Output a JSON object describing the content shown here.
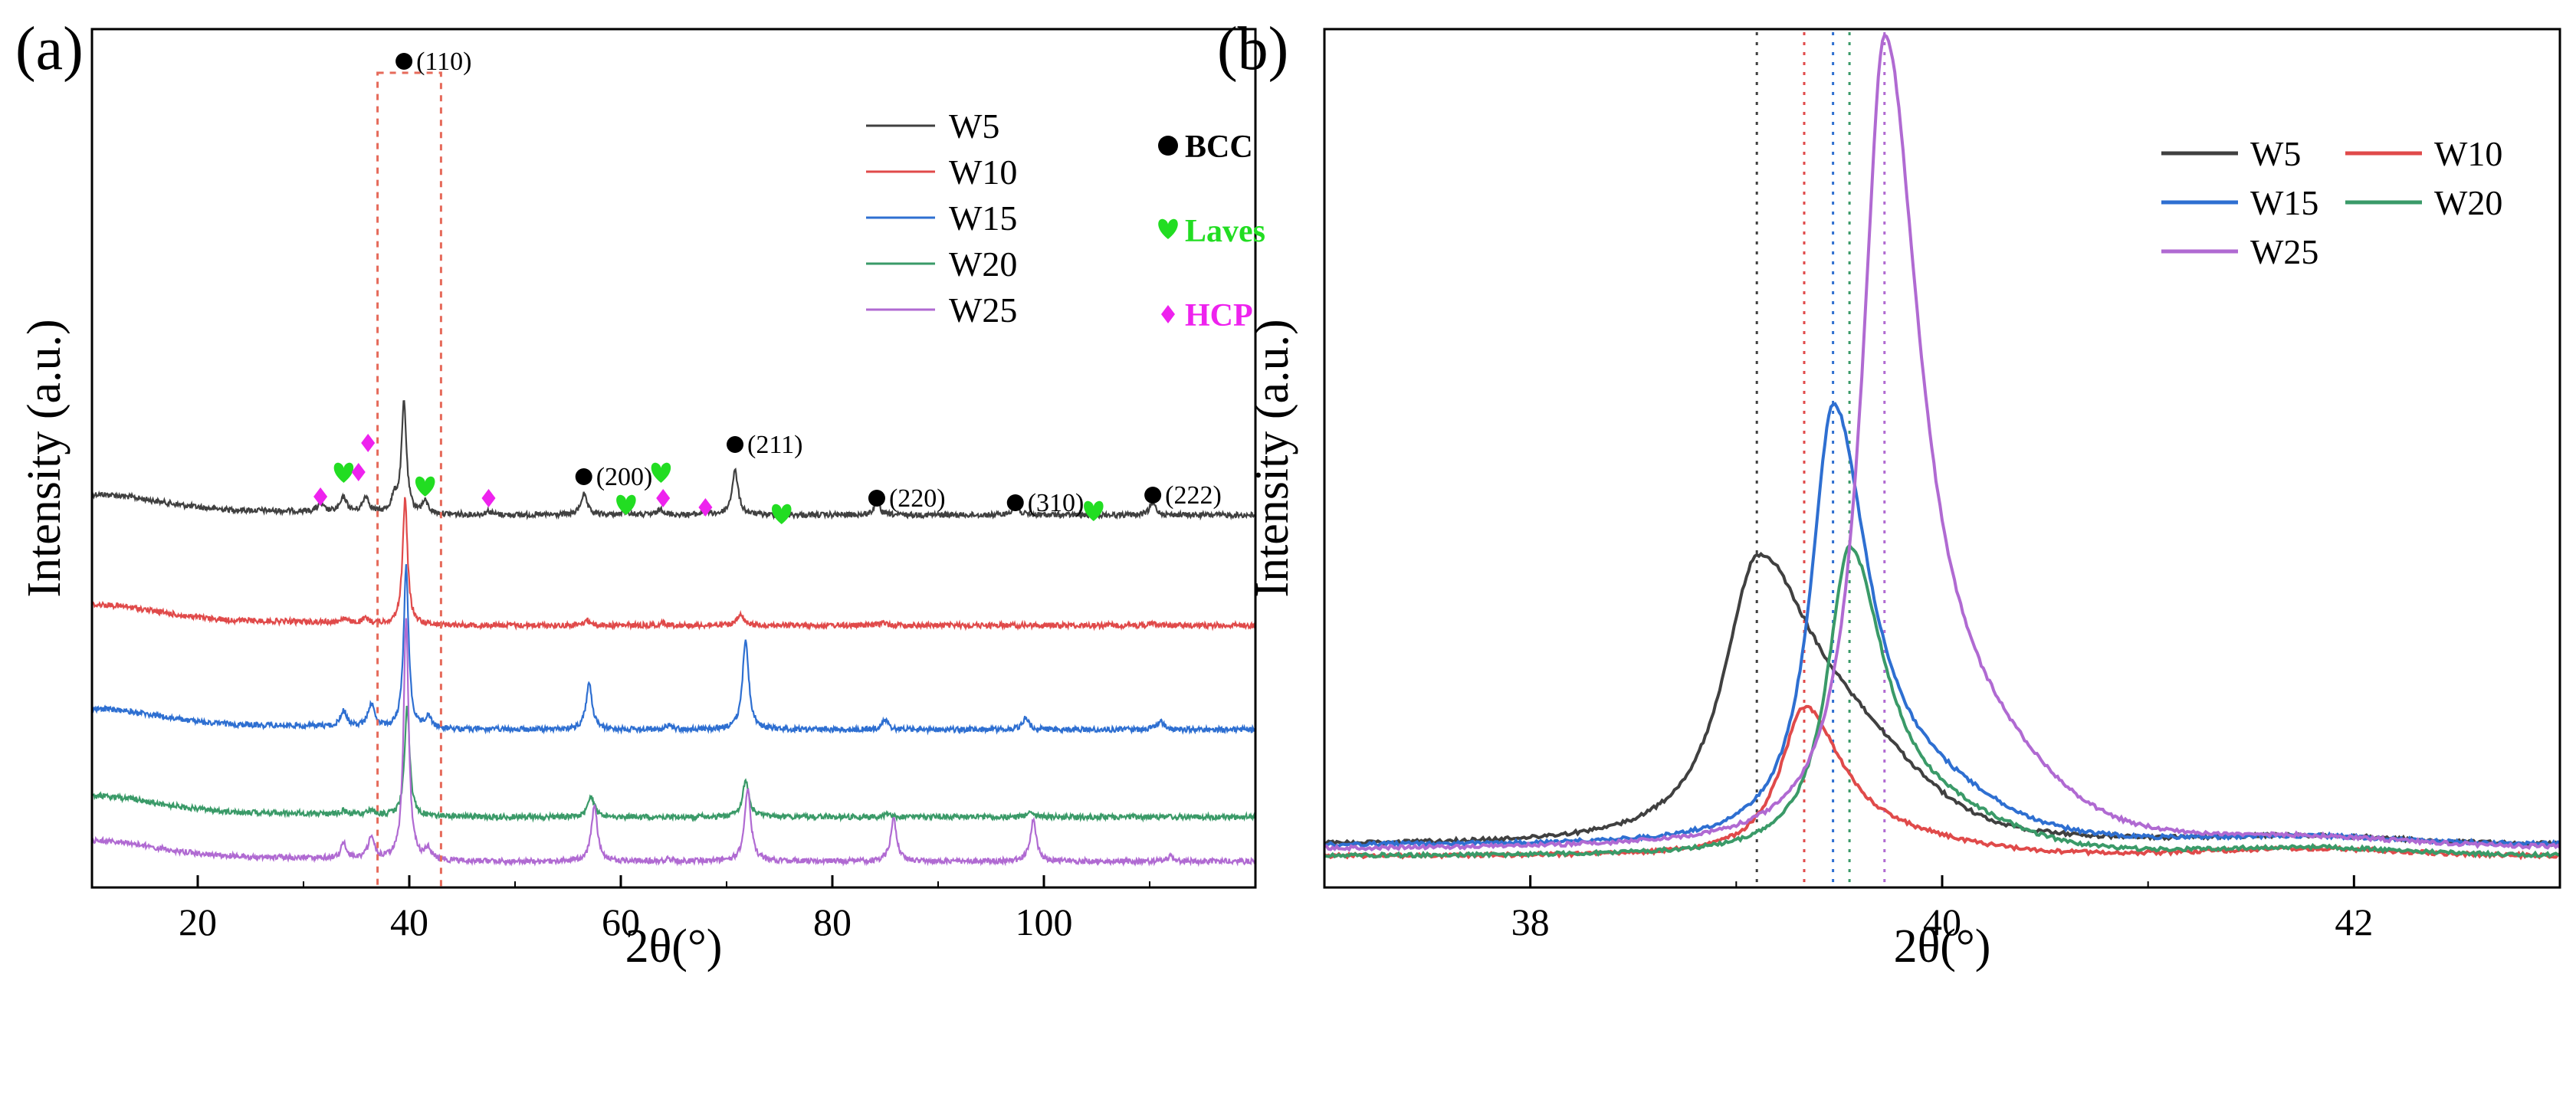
{
  "chart_data": [
    {
      "panel_label": "(a)",
      "type": "line",
      "xlabel": "2θ(°)",
      "ylabel": "Intensity (a.u.)",
      "xlim": [
        10,
        120
      ],
      "xticks": [
        20,
        40,
        60,
        80,
        100
      ],
      "y_tick_labels": "none",
      "series": [
        {
          "name": "W5",
          "color": "#404040",
          "offset": 4,
          "peaks": [
            [
              31.6,
              0.1
            ],
            [
              33.8,
              0.2
            ],
            [
              35.9,
              0.22
            ],
            [
              38.6,
              0.2
            ],
            [
              39.5,
              1.5
            ],
            [
              41.5,
              0.16
            ],
            [
              47.5,
              0.05
            ],
            [
              56.5,
              0.28
            ],
            [
              60.5,
              0.05
            ],
            [
              63.8,
              0.08
            ],
            [
              68.0,
              0.05
            ],
            [
              70.8,
              0.6
            ],
            [
              84.2,
              0.16
            ],
            [
              97.3,
              0.14
            ],
            [
              110.3,
              0.16
            ]
          ]
        },
        {
          "name": "W10",
          "color": "#e04a4a",
          "offset": 3,
          "peaks": [
            [
              33.8,
              0.06
            ],
            [
              35.9,
              0.06
            ],
            [
              39.6,
              1.7
            ],
            [
              56.8,
              0.07
            ],
            [
              64.0,
              0.03
            ],
            [
              71.3,
              0.14
            ],
            [
              84.8,
              0.04
            ],
            [
              110.5,
              0.03
            ]
          ]
        },
        {
          "name": "W15",
          "color": "#2e6fd1",
          "offset": 2,
          "peaks": [
            [
              33.8,
              0.22
            ],
            [
              36.4,
              0.32
            ],
            [
              39.7,
              2.2
            ],
            [
              41.8,
              0.16
            ],
            [
              57.0,
              0.62
            ],
            [
              64.5,
              0.06
            ],
            [
              71.8,
              1.22
            ],
            [
              85.0,
              0.13
            ],
            [
              98.3,
              0.16
            ],
            [
              111.0,
              0.13
            ]
          ]
        },
        {
          "name": "W20",
          "color": "#3a9a68",
          "offset": 1,
          "peaks": [
            [
              33.8,
              0.05
            ],
            [
              36.4,
              0.07
            ],
            [
              39.8,
              1.5
            ],
            [
              57.2,
              0.28
            ],
            [
              71.8,
              0.5
            ],
            [
              85.2,
              0.03
            ],
            [
              98.6,
              0.07
            ]
          ]
        },
        {
          "name": "W25",
          "color": "#b06ad2",
          "offset": 0,
          "peaks": [
            [
              33.8,
              0.2
            ],
            [
              36.4,
              0.3
            ],
            [
              39.7,
              3.3
            ],
            [
              41.8,
              0.14
            ],
            [
              57.5,
              0.75
            ],
            [
              64.5,
              0.04
            ],
            [
              72.0,
              1.0
            ],
            [
              85.8,
              0.58
            ],
            [
              99.0,
              0.56
            ],
            [
              112.0,
              0.08
            ]
          ]
        }
      ],
      "hkl_labels": [
        {
          "label": "(110)",
          "x": 39.5
        },
        {
          "label": "(200)",
          "x": 56.5
        },
        {
          "label": "(211)",
          "x": 70.8
        },
        {
          "label": "(220)",
          "x": 84.2
        },
        {
          "label": "(310)",
          "x": 97.3
        },
        {
          "label": "(222)",
          "x": 110.3
        }
      ],
      "phase_markers": {
        "laves": [
          33.8,
          41.5,
          60.5,
          63.8,
          75.2,
          104.7
        ],
        "hcp": [
          31.6,
          35.2,
          36.1,
          47.5,
          64.0,
          68.0
        ]
      },
      "phase_legend": [
        {
          "symbol": "circle",
          "label": "BCC",
          "color": "#000000"
        },
        {
          "symbol": "heart",
          "label": "Laves",
          "color": "#22dd22"
        },
        {
          "symbol": "diamond",
          "label": "HCP",
          "color": "#ee22ee"
        }
      ],
      "highlight_box_x": [
        37,
        43
      ],
      "legend_placement": "top-right",
      "grid": false
    },
    {
      "panel_label": "(b)",
      "type": "line",
      "xlabel": "2θ(°)",
      "ylabel": "Intensity (a.u.)",
      "xlim": [
        37,
        43
      ],
      "xticks": [
        38,
        40,
        42
      ],
      "y_tick_labels": "none",
      "series": [
        {
          "name": "W5",
          "color": "#404040",
          "center": 39.1,
          "height": 0.62,
          "width": 0.2,
          "tail": 0.7,
          "baseline": 0.03
        },
        {
          "name": "W10",
          "color": "#e04a4a",
          "center": 39.33,
          "height": 0.34,
          "width": 0.14,
          "tail": 0.18,
          "baseline": 0.005
        },
        {
          "name": "W15",
          "color": "#2e6fd1",
          "center": 39.47,
          "height": 1.0,
          "width": 0.13,
          "tail": 0.22,
          "baseline": 0.03
        },
        {
          "name": "W20",
          "color": "#3a9a68",
          "center": 39.55,
          "height": 0.7,
          "width": 0.13,
          "tail": 0.22,
          "baseline": 0.005
        },
        {
          "name": "W25",
          "color": "#b06ad2",
          "center": 39.72,
          "height": 1.85,
          "width": 0.13,
          "tail": 0.2,
          "baseline": 0.02
        }
      ],
      "reference_lines_x": [
        39.1,
        39.33,
        39.47,
        39.55,
        39.72
      ],
      "legend_placement": "top-right",
      "grid": false
    }
  ]
}
